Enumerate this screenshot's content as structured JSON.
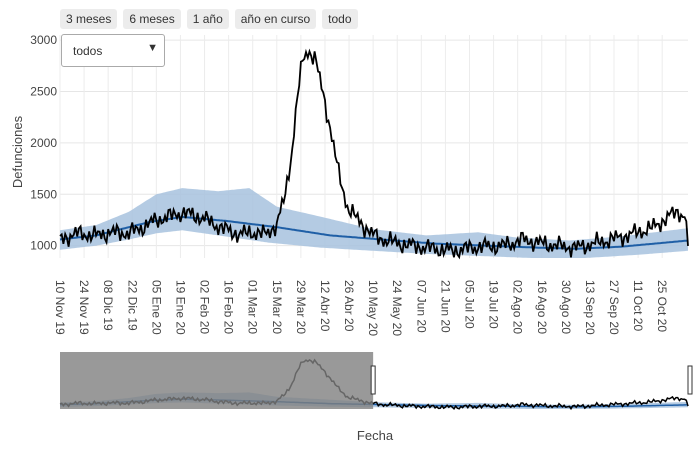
{
  "range_buttons": [
    "3 meses",
    "6 meses",
    "1 año",
    "año en curso",
    "todo"
  ],
  "dropdown": {
    "selected": "todos"
  },
  "colors": {
    "observed": "#000000",
    "expected": "#1f5fa6",
    "band": "#a7c2de"
  },
  "chart_data": {
    "type": "line",
    "xlabel": "Fecha",
    "ylabel": "Defunciones",
    "x_ticks": [
      "10 Nov 19",
      "24 Nov 19",
      "08 Dic 19",
      "22 Dic 19",
      "05 Ene 20",
      "19 Ene 20",
      "02 Feb 20",
      "16 Feb 20",
      "01 Mar 20",
      "15 Mar 20",
      "29 Mar 20",
      "12 Abr 20",
      "26 Abr 20",
      "10 May 20",
      "24 May 20",
      "07 Jun 20",
      "21 Jun 20",
      "05 Jul 20",
      "19 Jul 20",
      "02 Ago 20",
      "16 Ago 20",
      "30 Ago 20",
      "13 Sep 20",
      "27 Sep 20",
      "11 Oct 20",
      "25 Oct 20"
    ],
    "y_ticks": [
      "1000",
      "1500",
      "2000",
      "2500",
      "3000"
    ],
    "ylim": [
      880,
      3050
    ],
    "x_domain": [
      "2019-11-10",
      "2020-11-09"
    ],
    "grid": true,
    "series": [
      {
        "key": "observed",
        "points": [
          [
            "2019-11-10",
            1060
          ],
          [
            "2019-11-20",
            1120
          ],
          [
            "2019-11-30",
            1100
          ],
          [
            "2019-12-10",
            1130
          ],
          [
            "2019-12-20",
            1120
          ],
          [
            "2019-12-28",
            1180
          ],
          [
            "2020-01-05",
            1250
          ],
          [
            "2020-01-12",
            1280
          ],
          [
            "2020-01-19",
            1320
          ],
          [
            "2020-01-26",
            1300
          ],
          [
            "2020-02-02",
            1260
          ],
          [
            "2020-02-12",
            1170
          ],
          [
            "2020-02-22",
            1110
          ],
          [
            "2020-03-01",
            1130
          ],
          [
            "2020-03-08",
            1110
          ],
          [
            "2020-03-15",
            1200
          ],
          [
            "2020-03-20",
            1500
          ],
          [
            "2020-03-24",
            1950
          ],
          [
            "2020-03-27",
            2450
          ],
          [
            "2020-03-30",
            2800
          ],
          [
            "2020-04-02",
            2900
          ],
          [
            "2020-04-06",
            2830
          ],
          [
            "2020-04-10",
            2550
          ],
          [
            "2020-04-15",
            2150
          ],
          [
            "2020-04-20",
            1700
          ],
          [
            "2020-04-25",
            1380
          ],
          [
            "2020-05-02",
            1230
          ],
          [
            "2020-05-12",
            1080
          ],
          [
            "2020-05-25",
            1020
          ],
          [
            "2020-06-10",
            980
          ],
          [
            "2020-06-25",
            950
          ],
          [
            "2020-07-10",
            990
          ],
          [
            "2020-07-25",
            1000
          ],
          [
            "2020-08-05",
            1060
          ],
          [
            "2020-08-20",
            1010
          ],
          [
            "2020-09-05",
            980
          ],
          [
            "2020-09-20",
            1040
          ],
          [
            "2020-10-05",
            1100
          ],
          [
            "2020-10-20",
            1180
          ],
          [
            "2020-11-02",
            1330
          ],
          [
            "2020-11-07",
            1300
          ],
          [
            "2020-11-09",
            1020
          ]
        ]
      },
      {
        "key": "expected",
        "points": [
          [
            "2019-11-10",
            1060
          ],
          [
            "2019-12-01",
            1100
          ],
          [
            "2020-01-01",
            1230
          ],
          [
            "2020-01-20",
            1280
          ],
          [
            "2020-02-15",
            1240
          ],
          [
            "2020-03-15",
            1180
          ],
          [
            "2020-04-15",
            1100
          ],
          [
            "2020-05-15",
            1060
          ],
          [
            "2020-06-15",
            1020
          ],
          [
            "2020-07-15",
            1000
          ],
          [
            "2020-08-15",
            980
          ],
          [
            "2020-09-05",
            970
          ],
          [
            "2020-10-01",
            990
          ],
          [
            "2020-11-09",
            1050
          ]
        ]
      },
      {
        "key": "band_upper",
        "points": [
          [
            "2019-11-10",
            1150
          ],
          [
            "2019-12-01",
            1200
          ],
          [
            "2019-12-20",
            1330
          ],
          [
            "2020-01-05",
            1500
          ],
          [
            "2020-01-20",
            1560
          ],
          [
            "2020-02-10",
            1530
          ],
          [
            "2020-02-28",
            1560
          ],
          [
            "2020-03-15",
            1380
          ],
          [
            "2020-04-10",
            1280
          ],
          [
            "2020-05-10",
            1160
          ],
          [
            "2020-06-10",
            1100
          ],
          [
            "2020-07-10",
            1130
          ],
          [
            "2020-08-01",
            1080
          ],
          [
            "2020-09-01",
            1050
          ],
          [
            "2020-10-01",
            1090
          ],
          [
            "2020-11-09",
            1170
          ]
        ]
      },
      {
        "key": "band_lower",
        "points": [
          [
            "2019-11-10",
            960
          ],
          [
            "2019-12-01",
            1000
          ],
          [
            "2019-12-20",
            1060
          ],
          [
            "2020-01-05",
            1120
          ],
          [
            "2020-01-20",
            1150
          ],
          [
            "2020-02-10",
            1100
          ],
          [
            "2020-03-10",
            1030
          ],
          [
            "2020-04-10",
            980
          ],
          [
            "2020-05-10",
            950
          ],
          [
            "2020-06-10",
            920
          ],
          [
            "2020-07-10",
            900
          ],
          [
            "2020-08-10",
            880
          ],
          [
            "2020-09-10",
            880
          ],
          [
            "2020-10-10",
            910
          ],
          [
            "2020-11-09",
            950
          ]
        ]
      }
    ],
    "navigator": {
      "selection": [
        "2019-11-10",
        "2020-05-10"
      ]
    }
  }
}
